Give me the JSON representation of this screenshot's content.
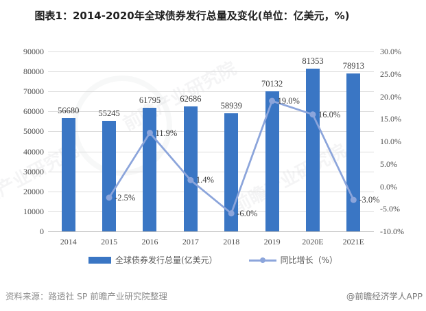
{
  "title": "图表1：2014-2020年全球债券发行总量及变化(单位：亿美元，%)",
  "source": {
    "left": "资料来源：路透社 SP 前瞻产业研究院整理",
    "right": "@前瞻经济学人APP"
  },
  "watermark_text": "前瞻产业研究院",
  "colors": {
    "bar": "#3A76C4",
    "line": "#8CA5DB",
    "grid": "#DCDCDC",
    "axis": "#BFBFBF",
    "title_text": "#1F1F1F",
    "tick_text": "#4D4D4D",
    "source_text": "#8C8C8C"
  },
  "chart_data": {
    "type": "bar",
    "subtype": "bar-line-combo",
    "title": "图表1：2014-2020年全球债券发行总量及变化(单位：亿美元，%)",
    "categories": [
      "2014",
      "2015",
      "2016",
      "2017",
      "2018",
      "2019",
      "2020E",
      "2021E"
    ],
    "series": [
      {
        "name": "全球债券发行总量(亿美元）",
        "type": "bar",
        "axis": "left",
        "color": "#3A76C4",
        "values": [
          56680,
          55245,
          61795,
          62686,
          58939,
          70132,
          81353,
          78913
        ],
        "labels": [
          "56680",
          "55245",
          "61795",
          "62686",
          "58939",
          "70132",
          "81353",
          "78913"
        ]
      },
      {
        "name": "同比增长（%）",
        "type": "line",
        "axis": "right",
        "color": "#8CA5DB",
        "values": [
          null,
          -2.5,
          11.9,
          1.4,
          -6.0,
          19.0,
          16.0,
          -3.0
        ],
        "labels": [
          null,
          "-2.5%",
          "11.9%",
          "1.4%",
          "-6.0%",
          "19.0%",
          "16.0%",
          "-3.0%"
        ]
      }
    ],
    "left_axis": {
      "min": 0,
      "max": 90000,
      "step": 10000,
      "tick_labels_bottom_to_top": [
        "0",
        "10000",
        "20000",
        "30000",
        "40000",
        "50000",
        "60000",
        "70000",
        "80000",
        "90000"
      ]
    },
    "right_axis": {
      "min": -10,
      "max": 30,
      "step": 5,
      "tick_labels_bottom_to_top": [
        "-10.0%",
        "-5.0%",
        "0.0%",
        "5.0%",
        "10.0%",
        "15.0%",
        "20.0%",
        "25.0%",
        "30.0%"
      ]
    },
    "grid": true,
    "legend_position": "bottom"
  }
}
